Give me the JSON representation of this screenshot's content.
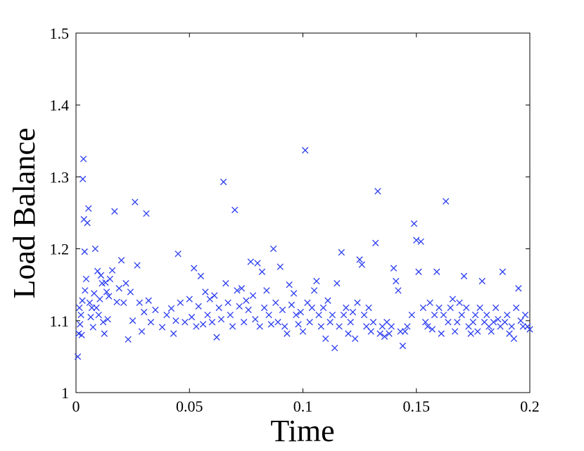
{
  "chart_data": {
    "type": "scatter",
    "xlabel": "Time",
    "ylabel": "Load Balance",
    "xlim": [
      0,
      0.2
    ],
    "ylim": [
      1,
      1.5
    ],
    "xticks": [
      "0",
      "0.05",
      "0.1",
      "0.15",
      "0.2"
    ],
    "yticks": [
      "1",
      "1.1",
      "1.2",
      "1.3",
      "1.4",
      "1.5"
    ],
    "grid": false,
    "marker": "x",
    "marker_color": "#2b3df0",
    "series": [
      {
        "points": [
          [
            0.0008,
            1.05
          ],
          [
            0.0012,
            1.082
          ],
          [
            0.0015,
            1.118
          ],
          [
            0.0018,
            1.095
          ],
          [
            0.0022,
            1.108
          ],
          [
            0.0025,
            1.08
          ],
          [
            0.0028,
            1.128
          ],
          [
            0.003,
            1.297
          ],
          [
            0.0033,
            1.325
          ],
          [
            0.0035,
            1.241
          ],
          [
            0.0038,
            1.196
          ],
          [
            0.004,
            1.142
          ],
          [
            0.0045,
            1.158
          ],
          [
            0.005,
            1.236
          ],
          [
            0.0055,
            1.256
          ],
          [
            0.006,
            1.125
          ],
          [
            0.0065,
            1.105
          ],
          [
            0.007,
            1.118
          ],
          [
            0.0075,
            1.091
          ],
          [
            0.008,
            1.138
          ],
          [
            0.0085,
            1.2
          ],
          [
            0.009,
            1.118
          ],
          [
            0.0095,
            1.169
          ],
          [
            0.01,
            1.108
          ],
          [
            0.0105,
            1.13
          ],
          [
            0.011,
            1.163
          ],
          [
            0.0115,
            1.152
          ],
          [
            0.012,
            1.098
          ],
          [
            0.0125,
            1.082
          ],
          [
            0.013,
            1.153
          ],
          [
            0.0135,
            1.14
          ],
          [
            0.014,
            1.102
          ],
          [
            0.0145,
            1.134
          ],
          [
            0.015,
            1.158
          ],
          [
            0.016,
            1.17
          ],
          [
            0.017,
            1.252
          ],
          [
            0.018,
            1.126
          ],
          [
            0.019,
            1.145
          ],
          [
            0.02,
            1.184
          ],
          [
            0.021,
            1.125
          ],
          [
            0.022,
            1.152
          ],
          [
            0.023,
            1.074
          ],
          [
            0.024,
            1.14
          ],
          [
            0.025,
            1.1
          ],
          [
            0.026,
            1.265
          ],
          [
            0.027,
            1.177
          ],
          [
            0.028,
            1.125
          ],
          [
            0.029,
            1.085
          ],
          [
            0.03,
            1.112
          ],
          [
            0.031,
            1.249
          ],
          [
            0.032,
            1.128
          ],
          [
            0.033,
            1.098
          ],
          [
            0.035,
            1.115
          ],
          [
            0.038,
            1.091
          ],
          [
            0.04,
            1.108
          ],
          [
            0.042,
            1.117
          ],
          [
            0.043,
            1.082
          ],
          [
            0.044,
            1.1
          ],
          [
            0.045,
            1.193
          ],
          [
            0.046,
            1.125
          ],
          [
            0.048,
            1.098
          ],
          [
            0.05,
            1.13
          ],
          [
            0.051,
            1.105
          ],
          [
            0.052,
            1.173
          ],
          [
            0.053,
            1.092
          ],
          [
            0.054,
            1.12
          ],
          [
            0.055,
            1.162
          ],
          [
            0.056,
            1.095
          ],
          [
            0.057,
            1.14
          ],
          [
            0.058,
            1.108
          ],
          [
            0.059,
            1.13
          ],
          [
            0.06,
            1.098
          ],
          [
            0.061,
            1.135
          ],
          [
            0.062,
            1.077
          ],
          [
            0.063,
            1.118
          ],
          [
            0.064,
            1.102
          ],
          [
            0.065,
            1.293
          ],
          [
            0.066,
            1.152
          ],
          [
            0.067,
            1.125
          ],
          [
            0.068,
            1.108
          ],
          [
            0.069,
            1.092
          ],
          [
            0.07,
            1.254
          ],
          [
            0.071,
            1.142
          ],
          [
            0.072,
            1.12
          ],
          [
            0.073,
            1.145
          ],
          [
            0.074,
            1.098
          ],
          [
            0.075,
            1.128
          ],
          [
            0.076,
            1.115
          ],
          [
            0.077,
            1.182
          ],
          [
            0.078,
            1.135
          ],
          [
            0.079,
            1.102
          ],
          [
            0.08,
            1.18
          ],
          [
            0.081,
            1.092
          ],
          [
            0.082,
            1.168
          ],
          [
            0.083,
            1.118
          ],
          [
            0.084,
            1.142
          ],
          [
            0.085,
            1.108
          ],
          [
            0.086,
            1.095
          ],
          [
            0.087,
            1.2
          ],
          [
            0.088,
            1.125
          ],
          [
            0.089,
            1.098
          ],
          [
            0.09,
            1.175
          ],
          [
            0.091,
            1.115
          ],
          [
            0.092,
            1.092
          ],
          [
            0.093,
            1.082
          ],
          [
            0.094,
            1.15
          ],
          [
            0.095,
            1.122
          ],
          [
            0.096,
            1.138
          ],
          [
            0.097,
            1.108
          ],
          [
            0.098,
            1.095
          ],
          [
            0.099,
            1.112
          ],
          [
            0.1,
            1.085
          ],
          [
            0.101,
            1.337
          ],
          [
            0.102,
            1.125
          ],
          [
            0.103,
            1.098
          ],
          [
            0.104,
            1.118
          ],
          [
            0.105,
            1.142
          ],
          [
            0.106,
            1.155
          ],
          [
            0.107,
            1.108
          ],
          [
            0.108,
            1.092
          ],
          [
            0.109,
            1.118
          ],
          [
            0.11,
            1.075
          ],
          [
            0.111,
            1.128
          ],
          [
            0.112,
            1.098
          ],
          [
            0.113,
            1.108
          ],
          [
            0.114,
            1.062
          ],
          [
            0.115,
            1.152
          ],
          [
            0.116,
            1.092
          ],
          [
            0.117,
            1.195
          ],
          [
            0.118,
            1.108
          ],
          [
            0.119,
            1.118
          ],
          [
            0.12,
            1.082
          ],
          [
            0.121,
            1.098
          ],
          [
            0.122,
            1.112
          ],
          [
            0.123,
            1.075
          ],
          [
            0.124,
            1.125
          ],
          [
            0.125,
            1.185
          ],
          [
            0.126,
            1.178
          ],
          [
            0.127,
            1.108
          ],
          [
            0.128,
            1.092
          ],
          [
            0.129,
            1.118
          ],
          [
            0.13,
            1.085
          ],
          [
            0.131,
            1.098
          ],
          [
            0.132,
            1.208
          ],
          [
            0.133,
            1.28
          ],
          [
            0.134,
            1.082
          ],
          [
            0.135,
            1.092
          ],
          [
            0.136,
            1.078
          ],
          [
            0.137,
            1.098
          ],
          [
            0.138,
            1.082
          ],
          [
            0.139,
            1.092
          ],
          [
            0.14,
            1.173
          ],
          [
            0.141,
            1.155
          ],
          [
            0.142,
            1.142
          ],
          [
            0.143,
            1.085
          ],
          [
            0.144,
            1.065
          ],
          [
            0.145,
            1.085
          ],
          [
            0.146,
            1.092
          ],
          [
            0.148,
            1.108
          ],
          [
            0.149,
            1.235
          ],
          [
            0.15,
            1.212
          ],
          [
            0.151,
            1.168
          ],
          [
            0.152,
            1.21
          ],
          [
            0.153,
            1.118
          ],
          [
            0.154,
            1.098
          ],
          [
            0.155,
            1.092
          ],
          [
            0.156,
            1.125
          ],
          [
            0.157,
            1.088
          ],
          [
            0.158,
            1.108
          ],
          [
            0.159,
            1.168
          ],
          [
            0.16,
            1.118
          ],
          [
            0.161,
            1.082
          ],
          [
            0.162,
            1.108
          ],
          [
            0.163,
            1.266
          ],
          [
            0.164,
            1.098
          ],
          [
            0.165,
            1.118
          ],
          [
            0.166,
            1.13
          ],
          [
            0.167,
            1.085
          ],
          [
            0.168,
            1.098
          ],
          [
            0.169,
            1.125
          ],
          [
            0.17,
            1.108
          ],
          [
            0.171,
            1.162
          ],
          [
            0.172,
            1.118
          ],
          [
            0.173,
            1.092
          ],
          [
            0.174,
            1.082
          ],
          [
            0.175,
            1.098
          ],
          [
            0.176,
            1.108
          ],
          [
            0.177,
            1.085
          ],
          [
            0.178,
            1.118
          ],
          [
            0.179,
            1.155
          ],
          [
            0.18,
            1.098
          ],
          [
            0.181,
            1.108
          ],
          [
            0.182,
            1.092
          ],
          [
            0.183,
            1.085
          ],
          [
            0.184,
            1.098
          ],
          [
            0.185,
            1.118
          ],
          [
            0.186,
            1.102
          ],
          [
            0.187,
            1.092
          ],
          [
            0.188,
            1.168
          ],
          [
            0.189,
            1.098
          ],
          [
            0.19,
            1.108
          ],
          [
            0.191,
            1.082
          ],
          [
            0.192,
            1.092
          ],
          [
            0.193,
            1.075
          ],
          [
            0.194,
            1.118
          ],
          [
            0.195,
            1.145
          ],
          [
            0.196,
            1.1
          ],
          [
            0.197,
            1.092
          ],
          [
            0.198,
            1.108
          ],
          [
            0.199,
            1.092
          ],
          [
            0.2,
            1.088
          ]
        ]
      }
    ]
  }
}
